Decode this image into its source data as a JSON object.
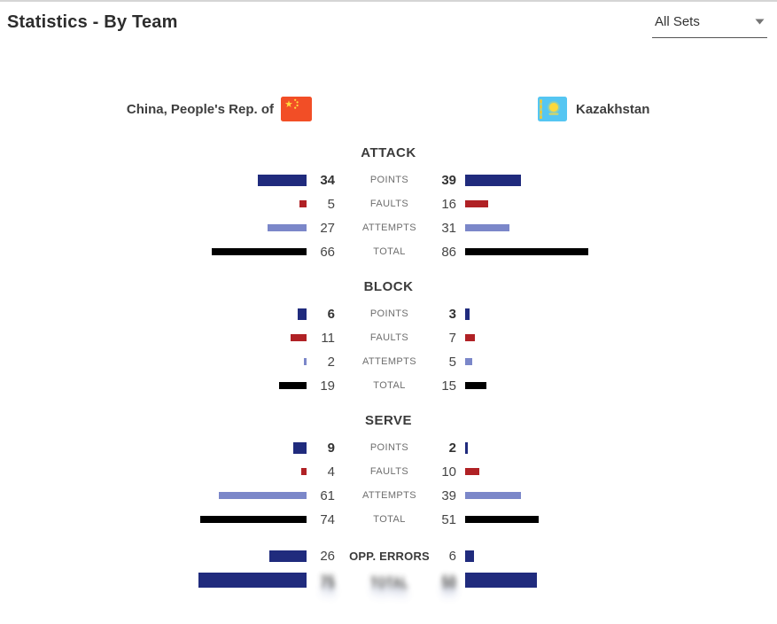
{
  "header": {
    "title": "Statistics - By Team",
    "sets_filter": {
      "value": "All Sets"
    }
  },
  "teams": {
    "home": {
      "name": "China, People's Rep. of"
    },
    "away": {
      "name": "Kazakhstan"
    }
  },
  "colors": {
    "points": "#202b7d",
    "faults": "#b02125",
    "attempts": "#7b87c9",
    "total": "#000000",
    "opp": "#202b7d",
    "grand": "#202b7d"
  },
  "layout": {
    "bar_scale": 1.62
  },
  "sections": [
    {
      "title": "ATTACK",
      "rows": [
        {
          "label": "POINTS",
          "home": 34,
          "away": 39
        },
        {
          "label": "FAULTS",
          "home": 5,
          "away": 16
        },
        {
          "label": "ATTEMPTS",
          "home": 27,
          "away": 31
        },
        {
          "label": "TOTAL",
          "home": 66,
          "away": 86
        }
      ]
    },
    {
      "title": "BLOCK",
      "rows": [
        {
          "label": "POINTS",
          "home": 6,
          "away": 3
        },
        {
          "label": "FAULTS",
          "home": 11,
          "away": 7
        },
        {
          "label": "ATTEMPTS",
          "home": 2,
          "away": 5
        },
        {
          "label": "TOTAL",
          "home": 19,
          "away": 15
        }
      ]
    },
    {
      "title": "SERVE",
      "rows": [
        {
          "label": "POINTS",
          "home": 9,
          "away": 2
        },
        {
          "label": "FAULTS",
          "home": 4,
          "away": 10
        },
        {
          "label": "ATTEMPTS",
          "home": 61,
          "away": 39
        },
        {
          "label": "TOTAL",
          "home": 74,
          "away": 51
        }
      ]
    }
  ],
  "opp_errors": {
    "label": "OPP. ERRORS",
    "home": 26,
    "away": 6
  },
  "grand_total": {
    "label": "TOTAL",
    "home": 75,
    "away": 50
  },
  "chart_data": {
    "type": "bar",
    "title": "Statistics - By Team",
    "subtitle": "All Sets",
    "categories": [
      "Attack Points",
      "Attack Faults",
      "Attack Attempts",
      "Attack Total",
      "Block Points",
      "Block Faults",
      "Block Attempts",
      "Block Total",
      "Serve Points",
      "Serve Faults",
      "Serve Attempts",
      "Serve Total",
      "Opp. Errors",
      "Total"
    ],
    "series": [
      {
        "name": "China, People's Rep. of",
        "values": [
          34,
          5,
          27,
          66,
          6,
          11,
          2,
          19,
          9,
          4,
          61,
          74,
          26,
          75
        ]
      },
      {
        "name": "Kazakhstan",
        "values": [
          39,
          16,
          31,
          86,
          3,
          7,
          5,
          15,
          2,
          10,
          39,
          51,
          6,
          50
        ]
      }
    ],
    "legend_position": "top",
    "layout_hint": "mirrored horizontal bars (home grows left, away grows right), category labels centered",
    "series_colors": {
      "points": "#202b7d",
      "faults": "#b02125",
      "attempts": "#7b87c9",
      "total": "#000000"
    }
  }
}
